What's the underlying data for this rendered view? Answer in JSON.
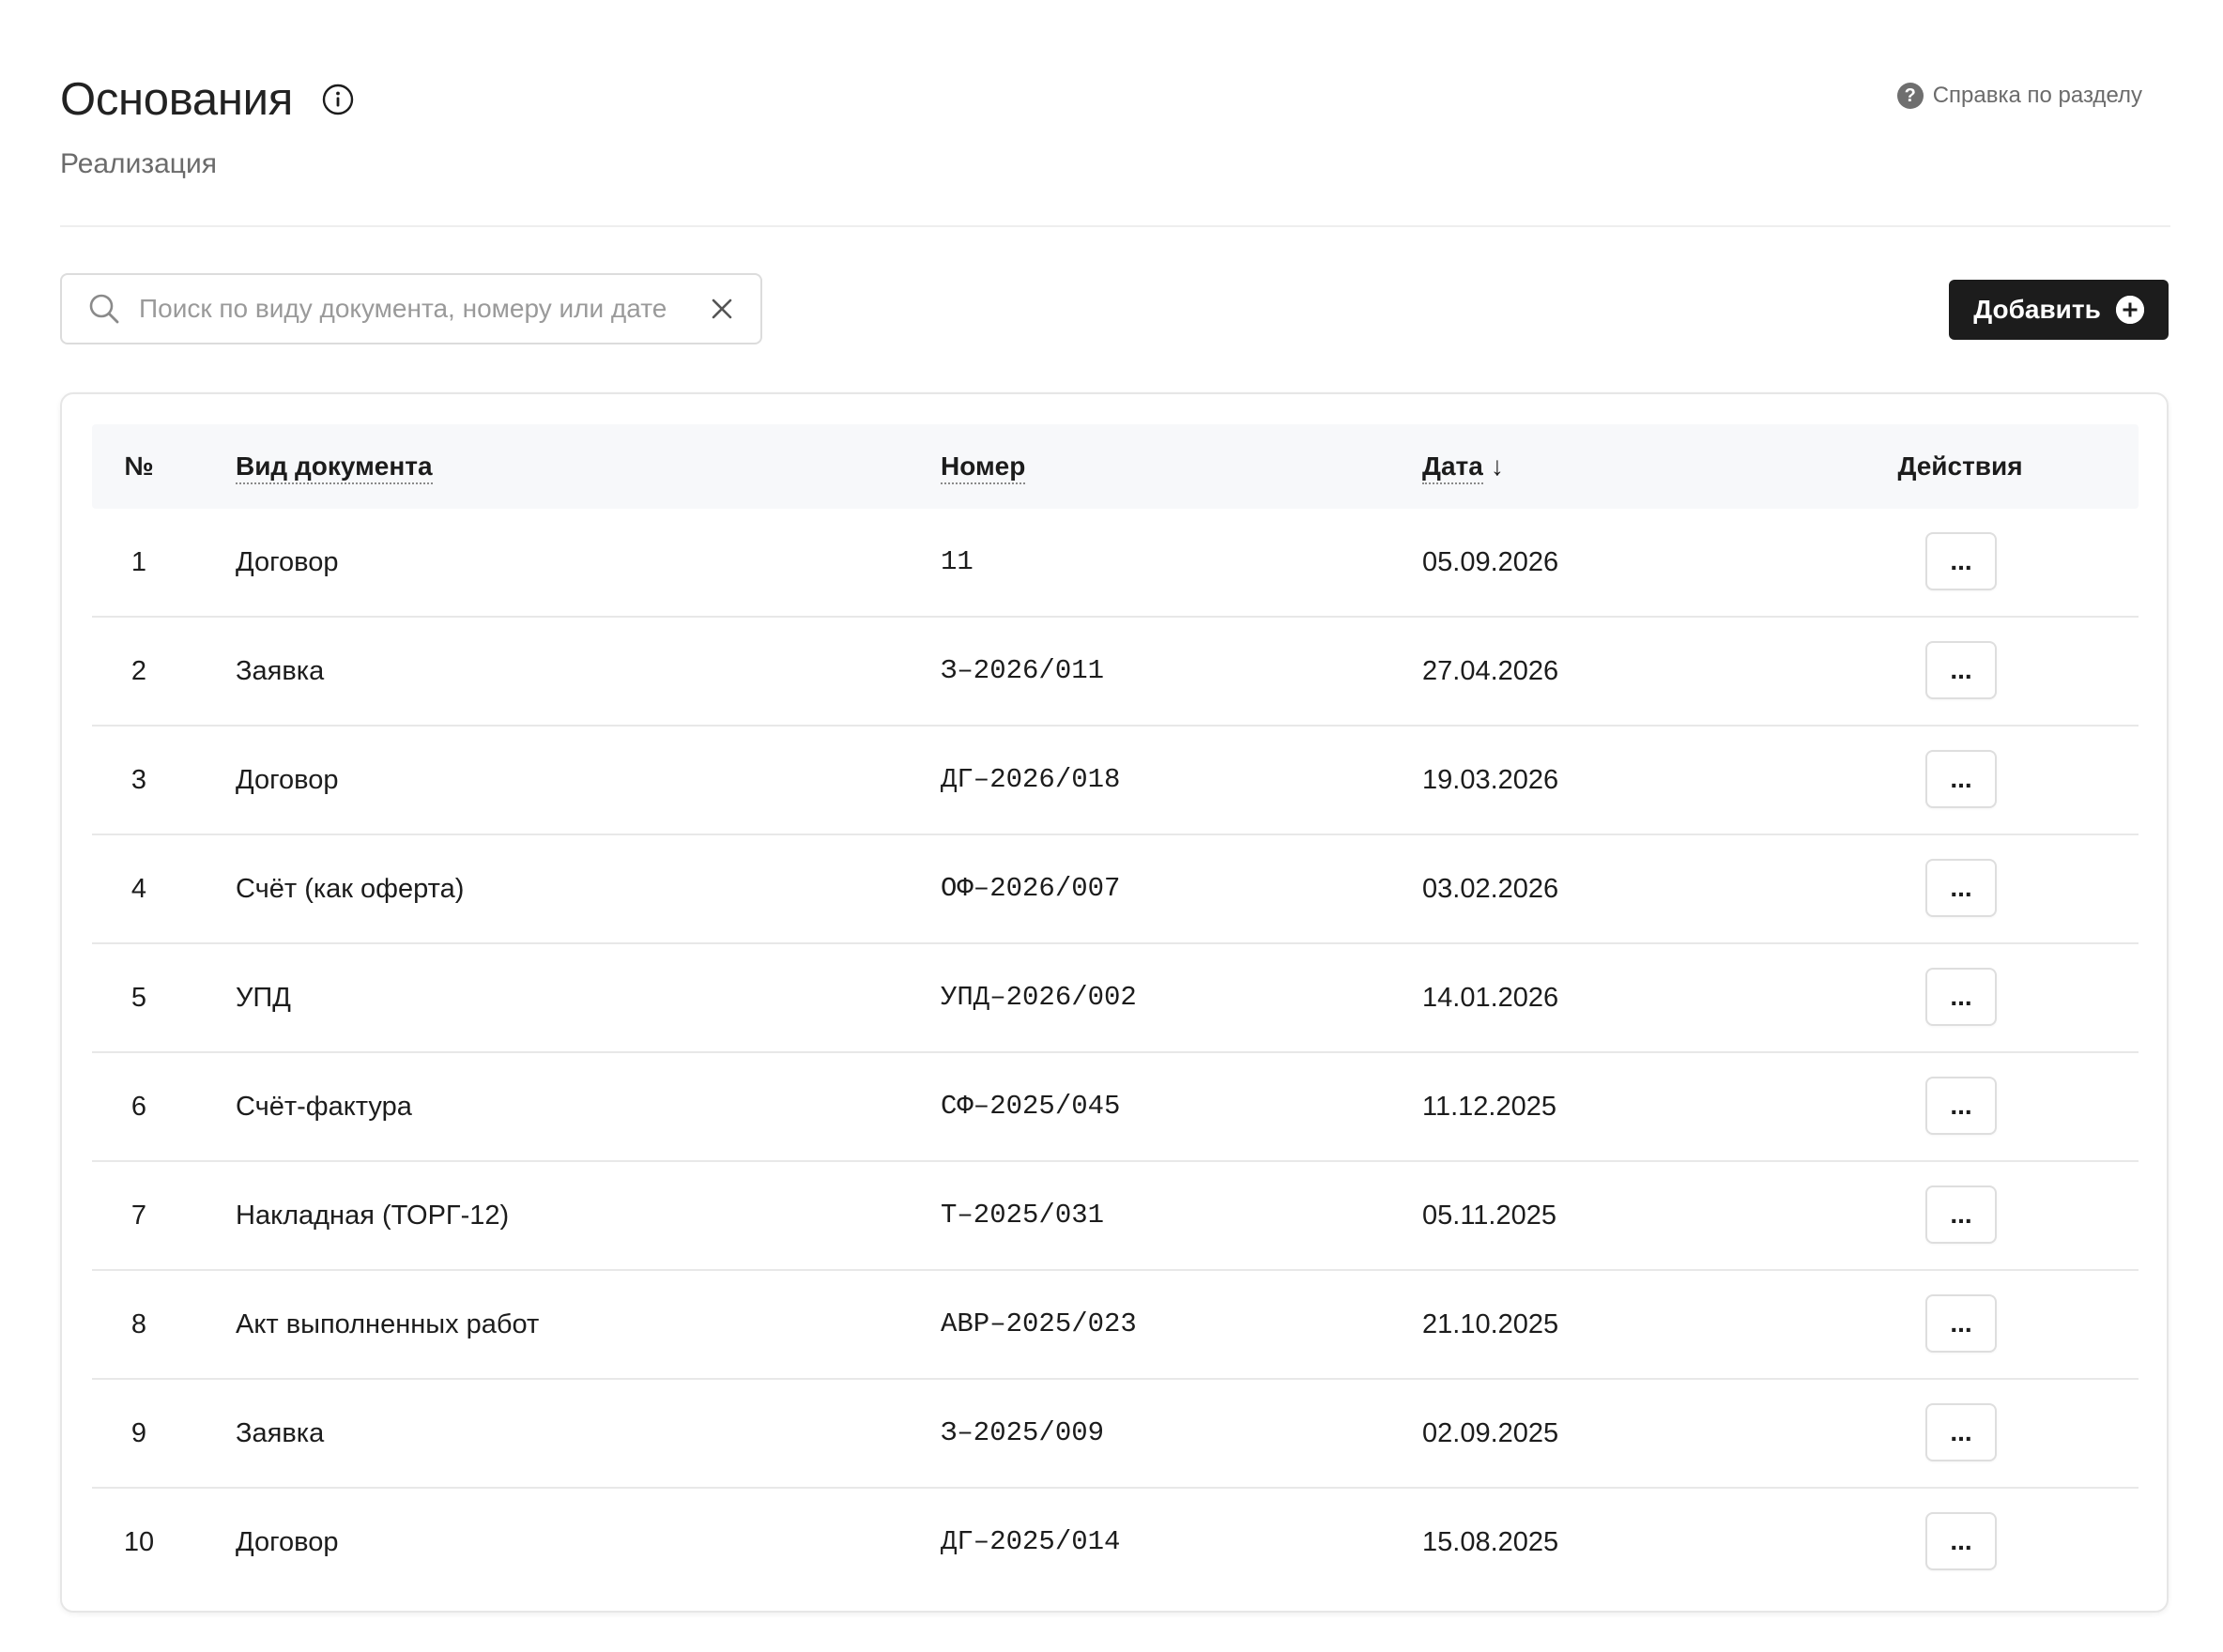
{
  "header": {
    "title": "Основания",
    "subtitle": "Реализация",
    "help_label": "Справка по разделу"
  },
  "search": {
    "placeholder": "Поиск по виду документа, номеру или дате",
    "value": ""
  },
  "toolbar": {
    "add_label": "Добавить"
  },
  "table": {
    "columns": {
      "num": "№",
      "type": "Вид документа",
      "number": "Номер",
      "date": "Дата",
      "sort_arrow": "↓",
      "actions": "Действия"
    },
    "action_label": "...",
    "rows": [
      {
        "n": "1",
        "type": "Договор",
        "number": "11",
        "date": "05.09.2026"
      },
      {
        "n": "2",
        "type": "Заявка",
        "number": "З–2026/011",
        "date": "27.04.2026"
      },
      {
        "n": "3",
        "type": "Договор",
        "number": "ДГ–2026/018",
        "date": "19.03.2026"
      },
      {
        "n": "4",
        "type": "Счёт (как оферта)",
        "number": "ОФ–2026/007",
        "date": "03.02.2026"
      },
      {
        "n": "5",
        "type": "УПД",
        "number": "УПД–2026/002",
        "date": "14.01.2026"
      },
      {
        "n": "6",
        "type": "Счёт-фактура",
        "number": "СФ–2025/045",
        "date": "11.12.2025"
      },
      {
        "n": "7",
        "type": "Накладная (ТОРГ-12)",
        "number": "Т–2025/031",
        "date": "05.11.2025"
      },
      {
        "n": "8",
        "type": "Акт выполненных работ",
        "number": "АВР–2025/023",
        "date": "21.10.2025"
      },
      {
        "n": "9",
        "type": "Заявка",
        "number": "З–2025/009",
        "date": "02.09.2025"
      },
      {
        "n": "10",
        "type": "Договор",
        "number": "ДГ–2025/014",
        "date": "15.08.2025"
      }
    ]
  },
  "colors": {
    "primary_button": "#1c1c1c",
    "header_bg": "#f7f8fa",
    "muted_text": "#6b6b6b"
  },
  "icons": {
    "info": "info-icon",
    "help": "question-icon",
    "search": "search-icon",
    "clear": "close-icon",
    "add": "plus-circle-icon"
  }
}
